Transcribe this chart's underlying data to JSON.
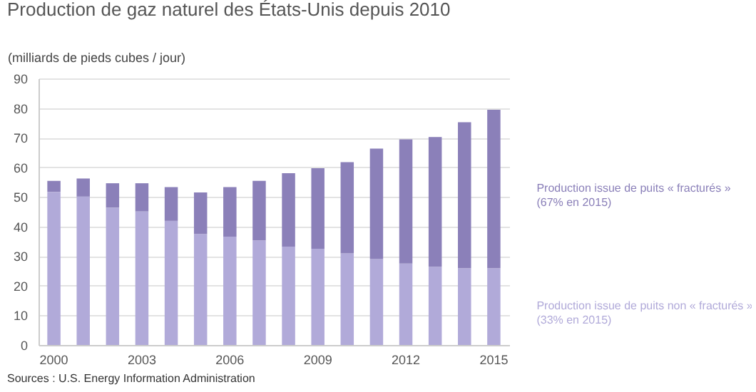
{
  "chart_data": {
    "type": "bar",
    "stacked": true,
    "title": "Production de gaz naturel des États-Unis depuis 2010",
    "ylabel": "(milliards de pieds cubes / jour)",
    "categories": [
      "2000",
      null,
      null,
      "2003",
      null,
      null,
      "2006",
      null,
      null,
      "2009",
      null,
      null,
      "2012",
      null,
      null,
      "2015"
    ],
    "series": [
      {
        "name": "Production issue de puits non « fracturés »\n(33% en 2015)",
        "color": "#b1aad9",
        "values": [
          51.7,
          50.1,
          46.4,
          45.1,
          41.9,
          37.5,
          36.6,
          35.3,
          33.2,
          32.5,
          30.9,
          29.0,
          27.5,
          26.4,
          25.9,
          25.9
        ]
      },
      {
        "name": "Production issue de puits « fracturés »\n(67% en 2015)",
        "color": "#8b80b9",
        "values": [
          3.7,
          6.1,
          8.2,
          9.5,
          11.4,
          14.0,
          16.7,
          20.1,
          24.8,
          27.2,
          30.8,
          37.3,
          41.9,
          43.8,
          49.3,
          53.5
        ]
      }
    ],
    "ylim": [
      0,
      90
    ],
    "yticks": [
      0,
      10,
      20,
      30,
      40,
      50,
      60,
      70,
      80,
      90
    ],
    "grid": "y",
    "annotations": [
      "Sources : U.S. Energy Information Administration"
    ]
  }
}
